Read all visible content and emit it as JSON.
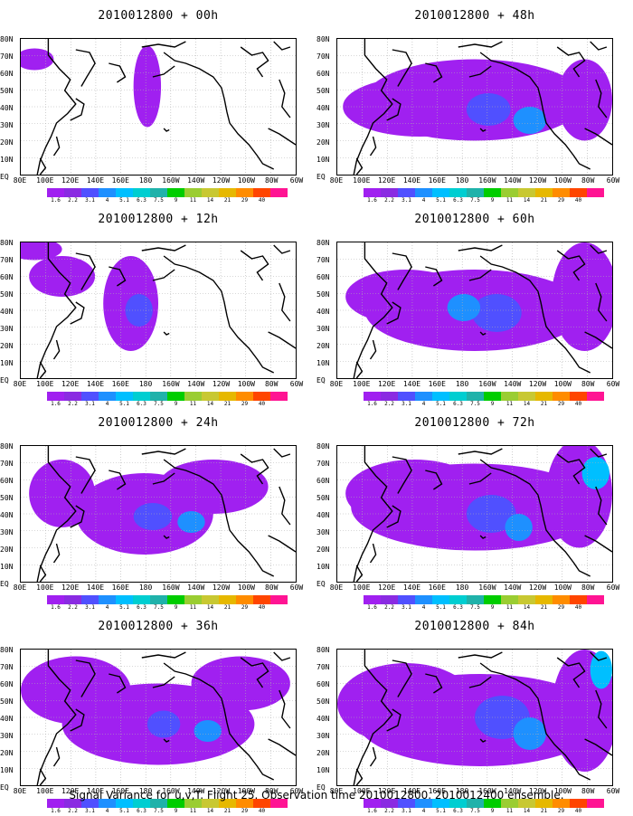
{
  "colors": {
    "levels": [
      "#a020f0",
      "#8a2be2",
      "#5050ff",
      "#1e90ff",
      "#00bfff",
      "#00ced1",
      "#20b2aa",
      "#00cd00",
      "#9acd32",
      "#c8c832",
      "#e6b800",
      "#ff8c00",
      "#ff4500",
      "#ff1493"
    ],
    "coast": "#000000",
    "grid": "#b0b0b0"
  },
  "lat_labels": [
    "80N",
    "70N",
    "60N",
    "50N",
    "40N",
    "30N",
    "20N",
    "10N",
    "EQ"
  ],
  "lon_labels": [
    "80E",
    "100E",
    "120E",
    "140E",
    "160E",
    "180",
    "160W",
    "140W",
    "120W",
    "100W",
    "80W",
    "60W"
  ],
  "colorbar_labels": [
    "1.6",
    "2.2",
    "3.1",
    "4",
    "5.1",
    "6.3",
    "7.5",
    "9",
    "11",
    "14",
    "21",
    "29",
    "40"
  ],
  "panels": [
    {
      "title": "2010012800 + 00h",
      "lead": "00h",
      "level": 0
    },
    {
      "title": "2010012800 + 48h",
      "lead": "48h",
      "level": 4
    },
    {
      "title": "2010012800 + 12h",
      "lead": "12h",
      "level": 1
    },
    {
      "title": "2010012800 + 60h",
      "lead": "60h",
      "level": 5
    },
    {
      "title": "2010012800 + 24h",
      "lead": "24h",
      "level": 2
    },
    {
      "title": "2010012800 + 72h",
      "lead": "72h",
      "level": 6
    },
    {
      "title": "2010012800 + 36h",
      "lead": "36h",
      "level": 3
    },
    {
      "title": "2010012800 + 84h",
      "lead": "84h",
      "level": 7
    }
  ],
  "footer": "Signal Variance for u,v,T. Flight 25. Observation time 2010012800. 2010012400 ensemble."
}
